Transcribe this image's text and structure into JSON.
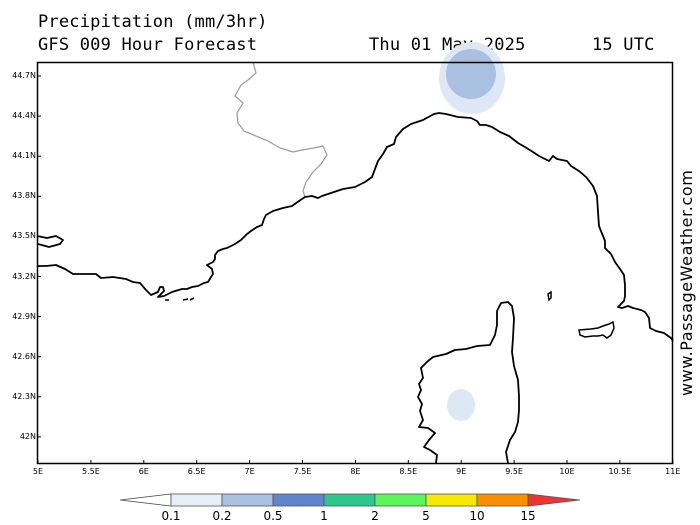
{
  "header": {
    "title": "Precipitation (mm/3hr)",
    "subtitle": "GFS 009 Hour Forecast",
    "date": "Thu 01 May 2025",
    "time": "15 UTC"
  },
  "map": {
    "lat_labels": [
      "44.7N",
      "44.4N",
      "44.1N",
      "43.8N",
      "43.5N",
      "43.2N",
      "42.9N",
      "42.6N",
      "42.3N",
      "42N"
    ],
    "lon_labels": [
      "5E",
      "5.5E",
      "6E",
      "6.5E",
      "7E",
      "7.5E",
      "8E",
      "8.5E",
      "9E",
      "9.5E",
      "10E",
      "10.5E",
      "11E"
    ],
    "coast_color": "#000000",
    "border_color": "#9a9a9a"
  },
  "legend": {
    "labels": [
      "0.1",
      "0.2",
      "0.5",
      "1",
      "2",
      "5",
      "10",
      "15"
    ],
    "colors": [
      "#e8eef8",
      "#a9c0e0",
      "#5f86cc",
      "#2ec68e",
      "#5cf55c",
      "#f6e800",
      "#f98f00",
      "#ee3333"
    ]
  },
  "credit": "www.PassageWeather.com"
}
